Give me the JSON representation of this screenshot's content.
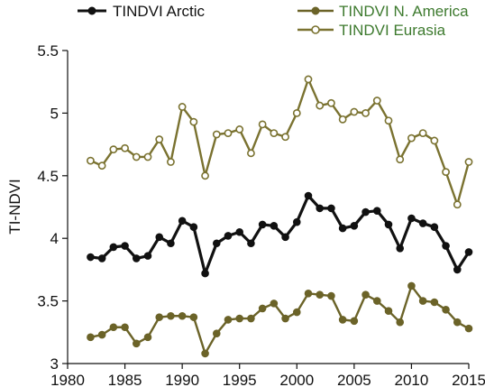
{
  "chart_data": {
    "type": "line",
    "title": "",
    "xlabel": "",
    "ylabel": "TI-NDVI",
    "xlim": [
      1980,
      2015
    ],
    "ylim": [
      3,
      5.5
    ],
    "xticks": [
      1980,
      1985,
      1990,
      1995,
      2000,
      2005,
      2010,
      2015
    ],
    "yticks": [
      3,
      3.5,
      4,
      4.5,
      5,
      5.5
    ],
    "ytick_labels": [
      "3",
      "3.5",
      "4",
      "4.5",
      "5",
      "5.5"
    ],
    "grid": false,
    "legend_position": "top",
    "x": [
      1982,
      1983,
      1984,
      1985,
      1986,
      1987,
      1988,
      1989,
      1990,
      1991,
      1992,
      1993,
      1994,
      1995,
      1996,
      1997,
      1998,
      1999,
      2000,
      2001,
      2002,
      2003,
      2004,
      2005,
      2006,
      2007,
      2008,
      2009,
      2010,
      2011,
      2012,
      2013,
      2014,
      2015
    ],
    "series": [
      {
        "name": "TINDVI Arctic",
        "color": "#111111",
        "label_color": "#111111",
        "marker": "filled",
        "values": [
          3.85,
          3.84,
          3.93,
          3.94,
          3.84,
          3.86,
          4.01,
          3.96,
          4.14,
          4.09,
          3.72,
          3.96,
          4.02,
          4.05,
          3.96,
          4.11,
          4.1,
          4.01,
          4.13,
          4.34,
          4.24,
          4.24,
          4.08,
          4.1,
          4.21,
          4.22,
          4.11,
          3.92,
          4.16,
          4.12,
          4.09,
          3.94,
          3.75,
          3.89
        ]
      },
      {
        "name": "TINDVI N. America",
        "color": "#6b6328",
        "label_color": "#3d7a2e",
        "marker": "filled",
        "values": [
          3.21,
          3.23,
          3.29,
          3.29,
          3.16,
          3.21,
          3.37,
          3.38,
          3.38,
          3.37,
          3.08,
          3.24,
          3.35,
          3.36,
          3.36,
          3.44,
          3.48,
          3.36,
          3.41,
          3.56,
          3.55,
          3.54,
          3.35,
          3.34,
          3.55,
          3.5,
          3.42,
          3.33,
          3.62,
          3.5,
          3.49,
          3.43,
          3.33,
          3.28
        ]
      },
      {
        "name": "TINDVI Eurasia",
        "color": "#7a7230",
        "label_color": "#3d7a2e",
        "marker": "hollow",
        "values": [
          4.62,
          4.58,
          4.71,
          4.72,
          4.65,
          4.65,
          4.79,
          4.61,
          5.05,
          4.93,
          4.5,
          4.83,
          4.84,
          4.87,
          4.68,
          4.91,
          4.84,
          4.81,
          5.0,
          5.27,
          5.06,
          5.08,
          4.95,
          5.01,
          5.0,
          5.1,
          4.94,
          4.63,
          4.8,
          4.84,
          4.78,
          4.53,
          4.27,
          4.61
        ]
      }
    ]
  }
}
